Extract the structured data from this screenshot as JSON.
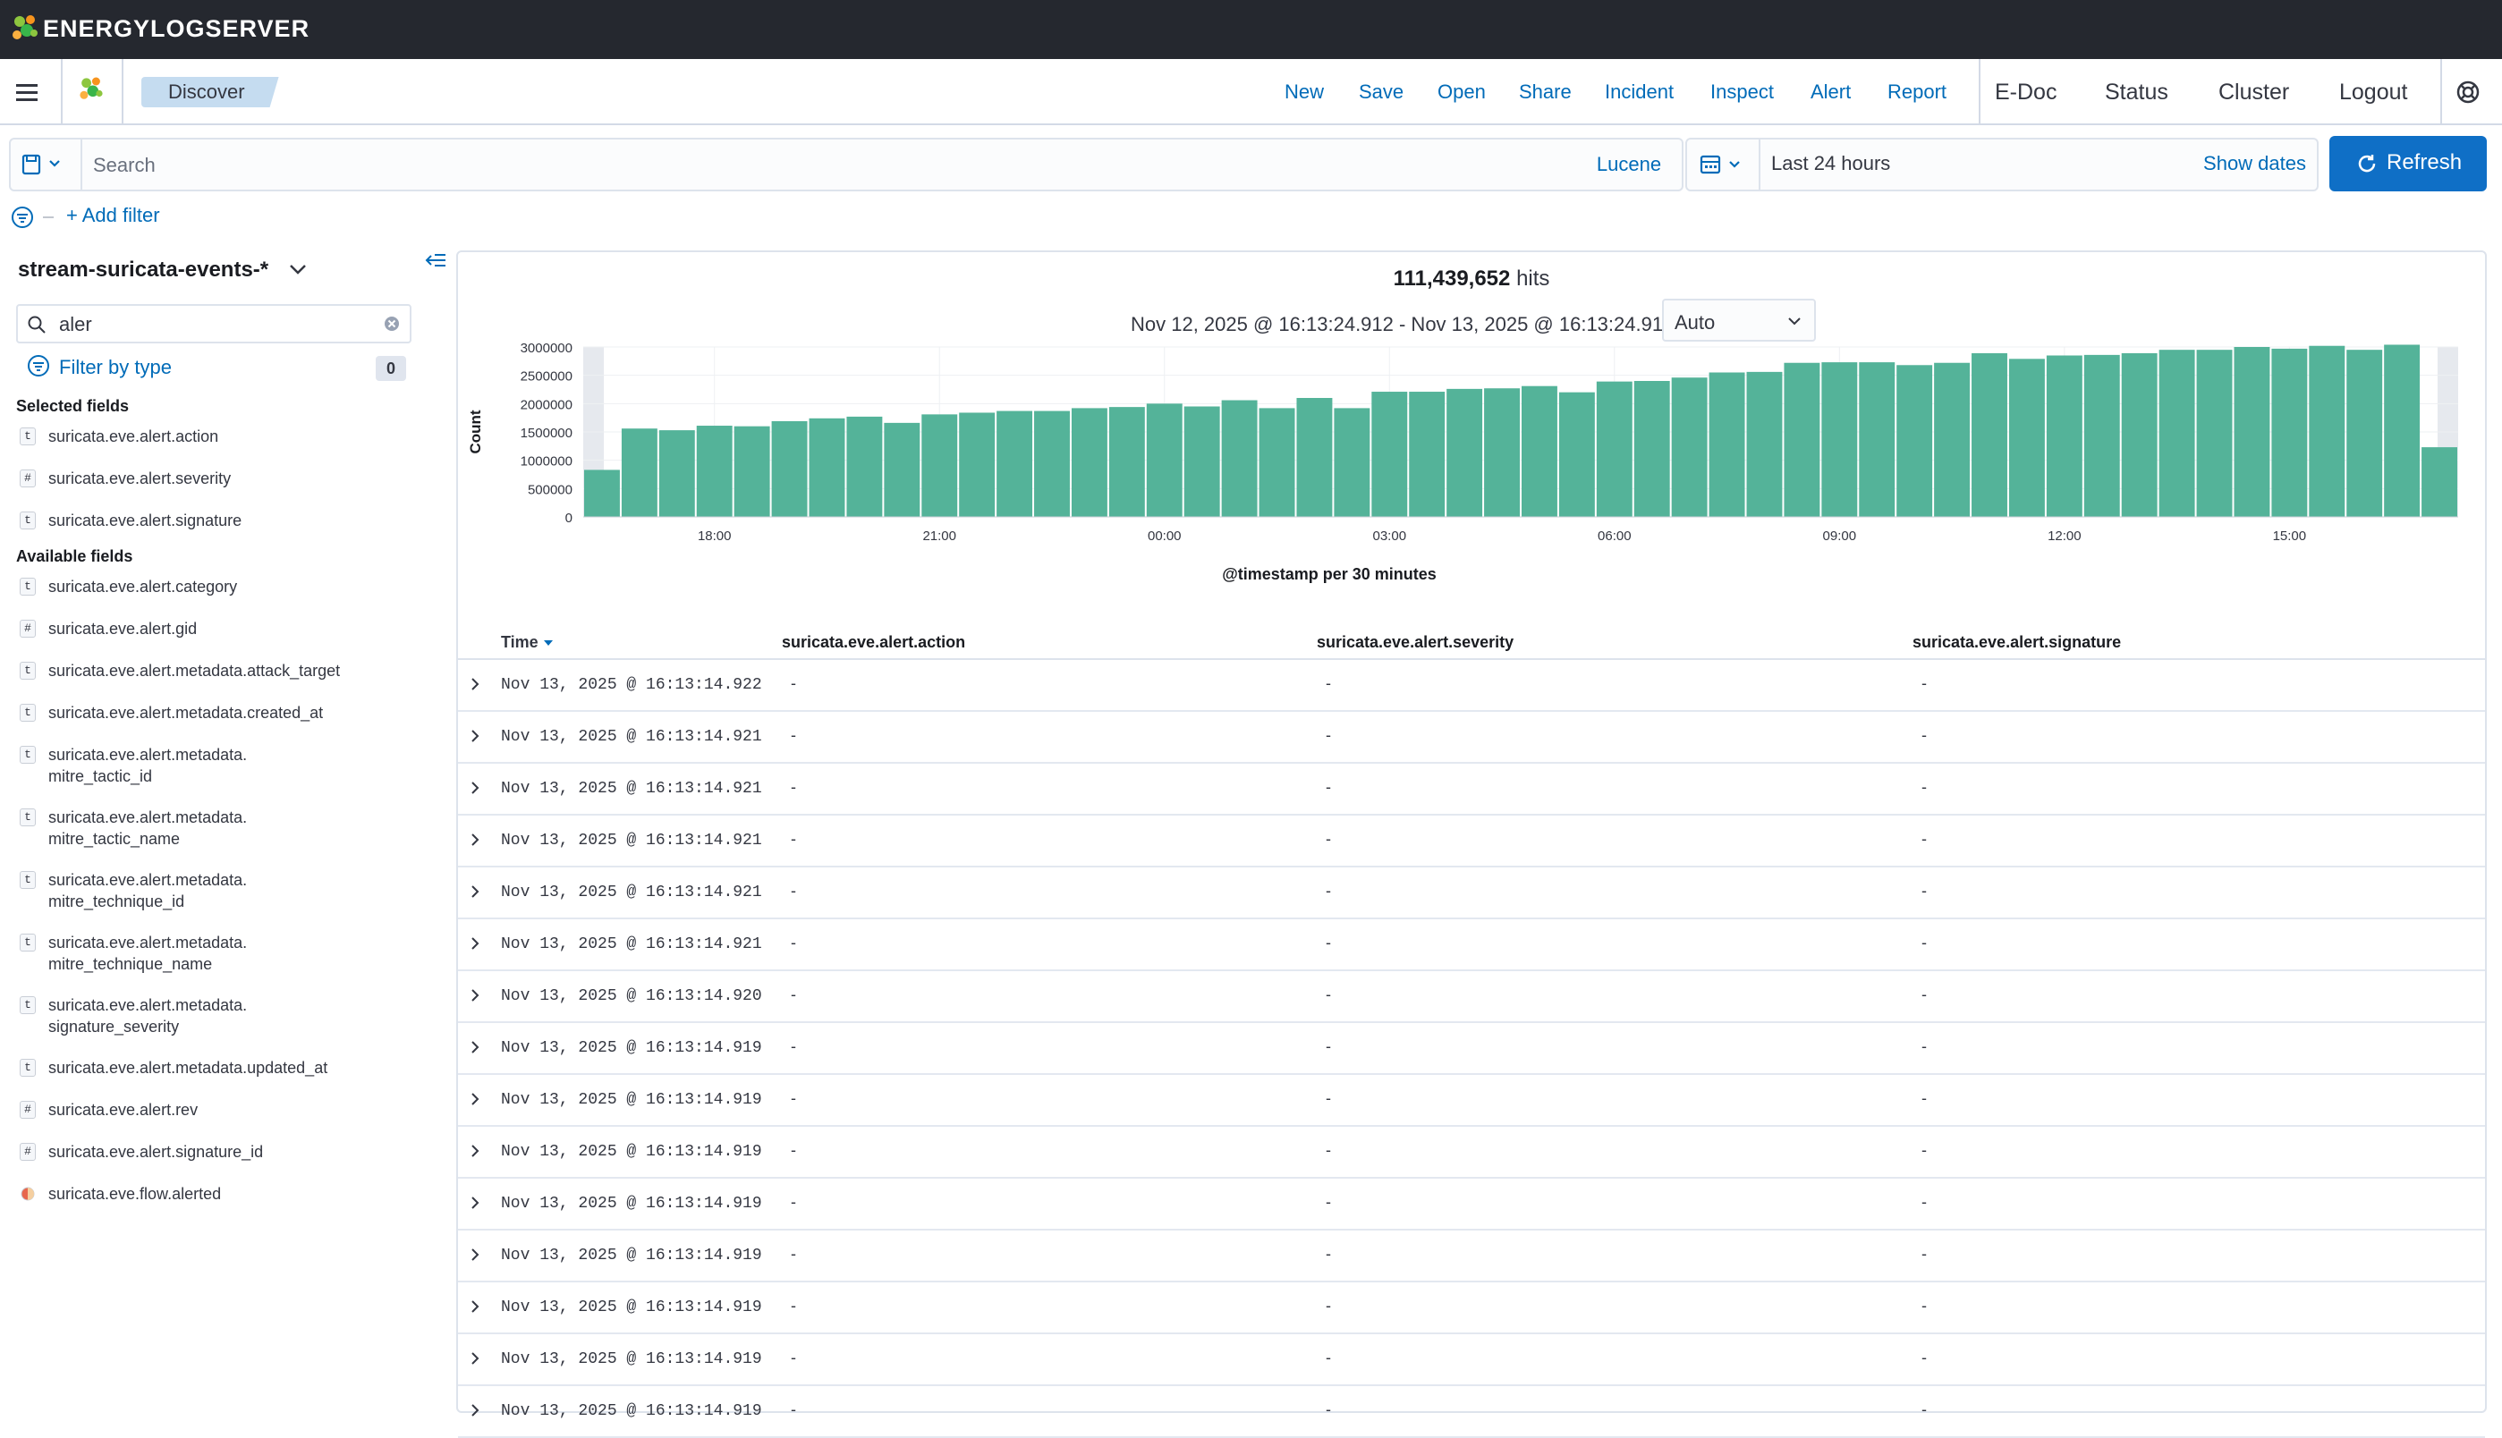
{
  "brand": {
    "name": "ENERGYLOGSERVER"
  },
  "nav": {
    "breadcrumb": "Discover",
    "links": [
      "New",
      "Save",
      "Open",
      "Share",
      "Incident",
      "Inspect",
      "Alert",
      "Report"
    ],
    "dark_links": [
      "E-Doc",
      "Status",
      "Cluster",
      "Logout"
    ]
  },
  "query": {
    "placeholder": "Search",
    "language": "Lucene",
    "date_range": "Last 24 hours",
    "show_dates": "Show dates",
    "refresh": "Refresh",
    "add_filter": "+ Add filter"
  },
  "sidebar": {
    "index_pattern": "stream-suricata-events-*",
    "field_search_value": "aler",
    "filter_by_type": "Filter by type",
    "filter_count": "0",
    "selected_title": "Selected fields",
    "available_title": "Available fields",
    "selected_fields": [
      {
        "type": "t",
        "name": "suricata.eve.alert.action"
      },
      {
        "type": "#",
        "name": "suricata.eve.alert.severity"
      },
      {
        "type": "t",
        "name": "suricata.eve.alert.signature"
      }
    ],
    "available_fields": [
      {
        "type": "t",
        "name": "suricata.eve.alert.category"
      },
      {
        "type": "#",
        "name": "suricata.eve.alert.gid"
      },
      {
        "type": "t",
        "name": "suricata.eve.alert.metadata.attack_target"
      },
      {
        "type": "t",
        "name": "suricata.eve.alert.metadata.created_at"
      },
      {
        "type": "t",
        "name": "suricata.eve.alert.metadata.",
        "name2": "mitre_tactic_id"
      },
      {
        "type": "t",
        "name": "suricata.eve.alert.metadata.",
        "name2": "mitre_tactic_name"
      },
      {
        "type": "t",
        "name": "suricata.eve.alert.metadata.",
        "name2": "mitre_technique_id"
      },
      {
        "type": "t",
        "name": "suricata.eve.alert.metadata.",
        "name2": "mitre_technique_name"
      },
      {
        "type": "t",
        "name": "suricata.eve.alert.metadata.",
        "name2": "signature_severity"
      },
      {
        "type": "t",
        "name": "suricata.eve.alert.metadata.updated_at"
      },
      {
        "type": "#",
        "name": "suricata.eve.alert.rev"
      },
      {
        "type": "#",
        "name": "suricata.eve.alert.signature_id"
      },
      {
        "type": "bool",
        "name": "suricata.eve.flow.alerted"
      }
    ]
  },
  "main": {
    "hits_count": "111,439,652",
    "hits_label": "hits",
    "time_range": "Nov 12, 2025 @ 16:13:24.912 - Nov 13, 2025 @ 16:13:24.912",
    "interval": "Auto",
    "columns": {
      "time": "Time",
      "c1": "suricata.eve.alert.action",
      "c2": "suricata.eve.alert.severity",
      "c3": "suricata.eve.alert.signature"
    },
    "rows": [
      {
        "time": "Nov 13, 2025 @ 16:13:14.922",
        "c1": "-",
        "c2": "-",
        "c3": "-"
      },
      {
        "time": "Nov 13, 2025 @ 16:13:14.921",
        "c1": "-",
        "c2": "-",
        "c3": "-"
      },
      {
        "time": "Nov 13, 2025 @ 16:13:14.921",
        "c1": "-",
        "c2": "-",
        "c3": "-"
      },
      {
        "time": "Nov 13, 2025 @ 16:13:14.921",
        "c1": "-",
        "c2": "-",
        "c3": "-"
      },
      {
        "time": "Nov 13, 2025 @ 16:13:14.921",
        "c1": "-",
        "c2": "-",
        "c3": "-"
      },
      {
        "time": "Nov 13, 2025 @ 16:13:14.921",
        "c1": "-",
        "c2": "-",
        "c3": "-"
      },
      {
        "time": "Nov 13, 2025 @ 16:13:14.920",
        "c1": "-",
        "c2": "-",
        "c3": "-"
      },
      {
        "time": "Nov 13, 2025 @ 16:13:14.919",
        "c1": "-",
        "c2": "-",
        "c3": "-"
      },
      {
        "time": "Nov 13, 2025 @ 16:13:14.919",
        "c1": "-",
        "c2": "-",
        "c3": "-"
      },
      {
        "time": "Nov 13, 2025 @ 16:13:14.919",
        "c1": "-",
        "c2": "-",
        "c3": "-"
      },
      {
        "time": "Nov 13, 2025 @ 16:13:14.919",
        "c1": "-",
        "c2": "-",
        "c3": "-"
      },
      {
        "time": "Nov 13, 2025 @ 16:13:14.919",
        "c1": "-",
        "c2": "-",
        "c3": "-"
      },
      {
        "time": "Nov 13, 2025 @ 16:13:14.919",
        "c1": "-",
        "c2": "-",
        "c3": "-"
      },
      {
        "time": "Nov 13, 2025 @ 16:13:14.919",
        "c1": "-",
        "c2": "-",
        "c3": "-"
      },
      {
        "time": "Nov 13, 2025 @ 16:13:14.919",
        "c1": "-",
        "c2": "-",
        "c3": "-"
      }
    ]
  },
  "colors": {
    "bar": "#54b399",
    "link": "#006bb8",
    "primary": "#0f6fc6",
    "brandbar": "#25282f"
  },
  "chart_data": {
    "type": "bar",
    "title": "",
    "xlabel": "@timestamp per 30 minutes",
    "ylabel": "Count",
    "ylim": [
      0,
      3000000
    ],
    "yticks": [
      "0",
      "500000",
      "1000000",
      "1500000",
      "2000000",
      "2500000",
      "3000000"
    ],
    "xticks": [
      {
        "label": "18:00",
        "index": 3.5
      },
      {
        "label": "21:00",
        "index": 9.5
      },
      {
        "label": "00:00",
        "index": 15.5
      },
      {
        "label": "03:00",
        "index": 21.5
      },
      {
        "label": "06:00",
        "index": 27.5
      },
      {
        "label": "09:00",
        "index": 33.5
      },
      {
        "label": "12:00",
        "index": 39.5
      },
      {
        "label": "15:00",
        "index": 45.5
      }
    ],
    "grid": true,
    "values": [
      830000,
      1560000,
      1530000,
      1610000,
      1600000,
      1690000,
      1740000,
      1770000,
      1660000,
      1810000,
      1840000,
      1870000,
      1870000,
      1920000,
      1940000,
      2000000,
      1950000,
      2060000,
      1920000,
      2100000,
      1920000,
      2210000,
      2210000,
      2260000,
      2270000,
      2310000,
      2200000,
      2390000,
      2400000,
      2460000,
      2550000,
      2560000,
      2720000,
      2730000,
      2730000,
      2680000,
      2720000,
      2890000,
      2790000,
      2850000,
      2860000,
      2890000,
      2950000,
      2950000,
      3000000,
      2970000,
      3020000,
      2950000,
      3040000,
      1230000
    ]
  }
}
